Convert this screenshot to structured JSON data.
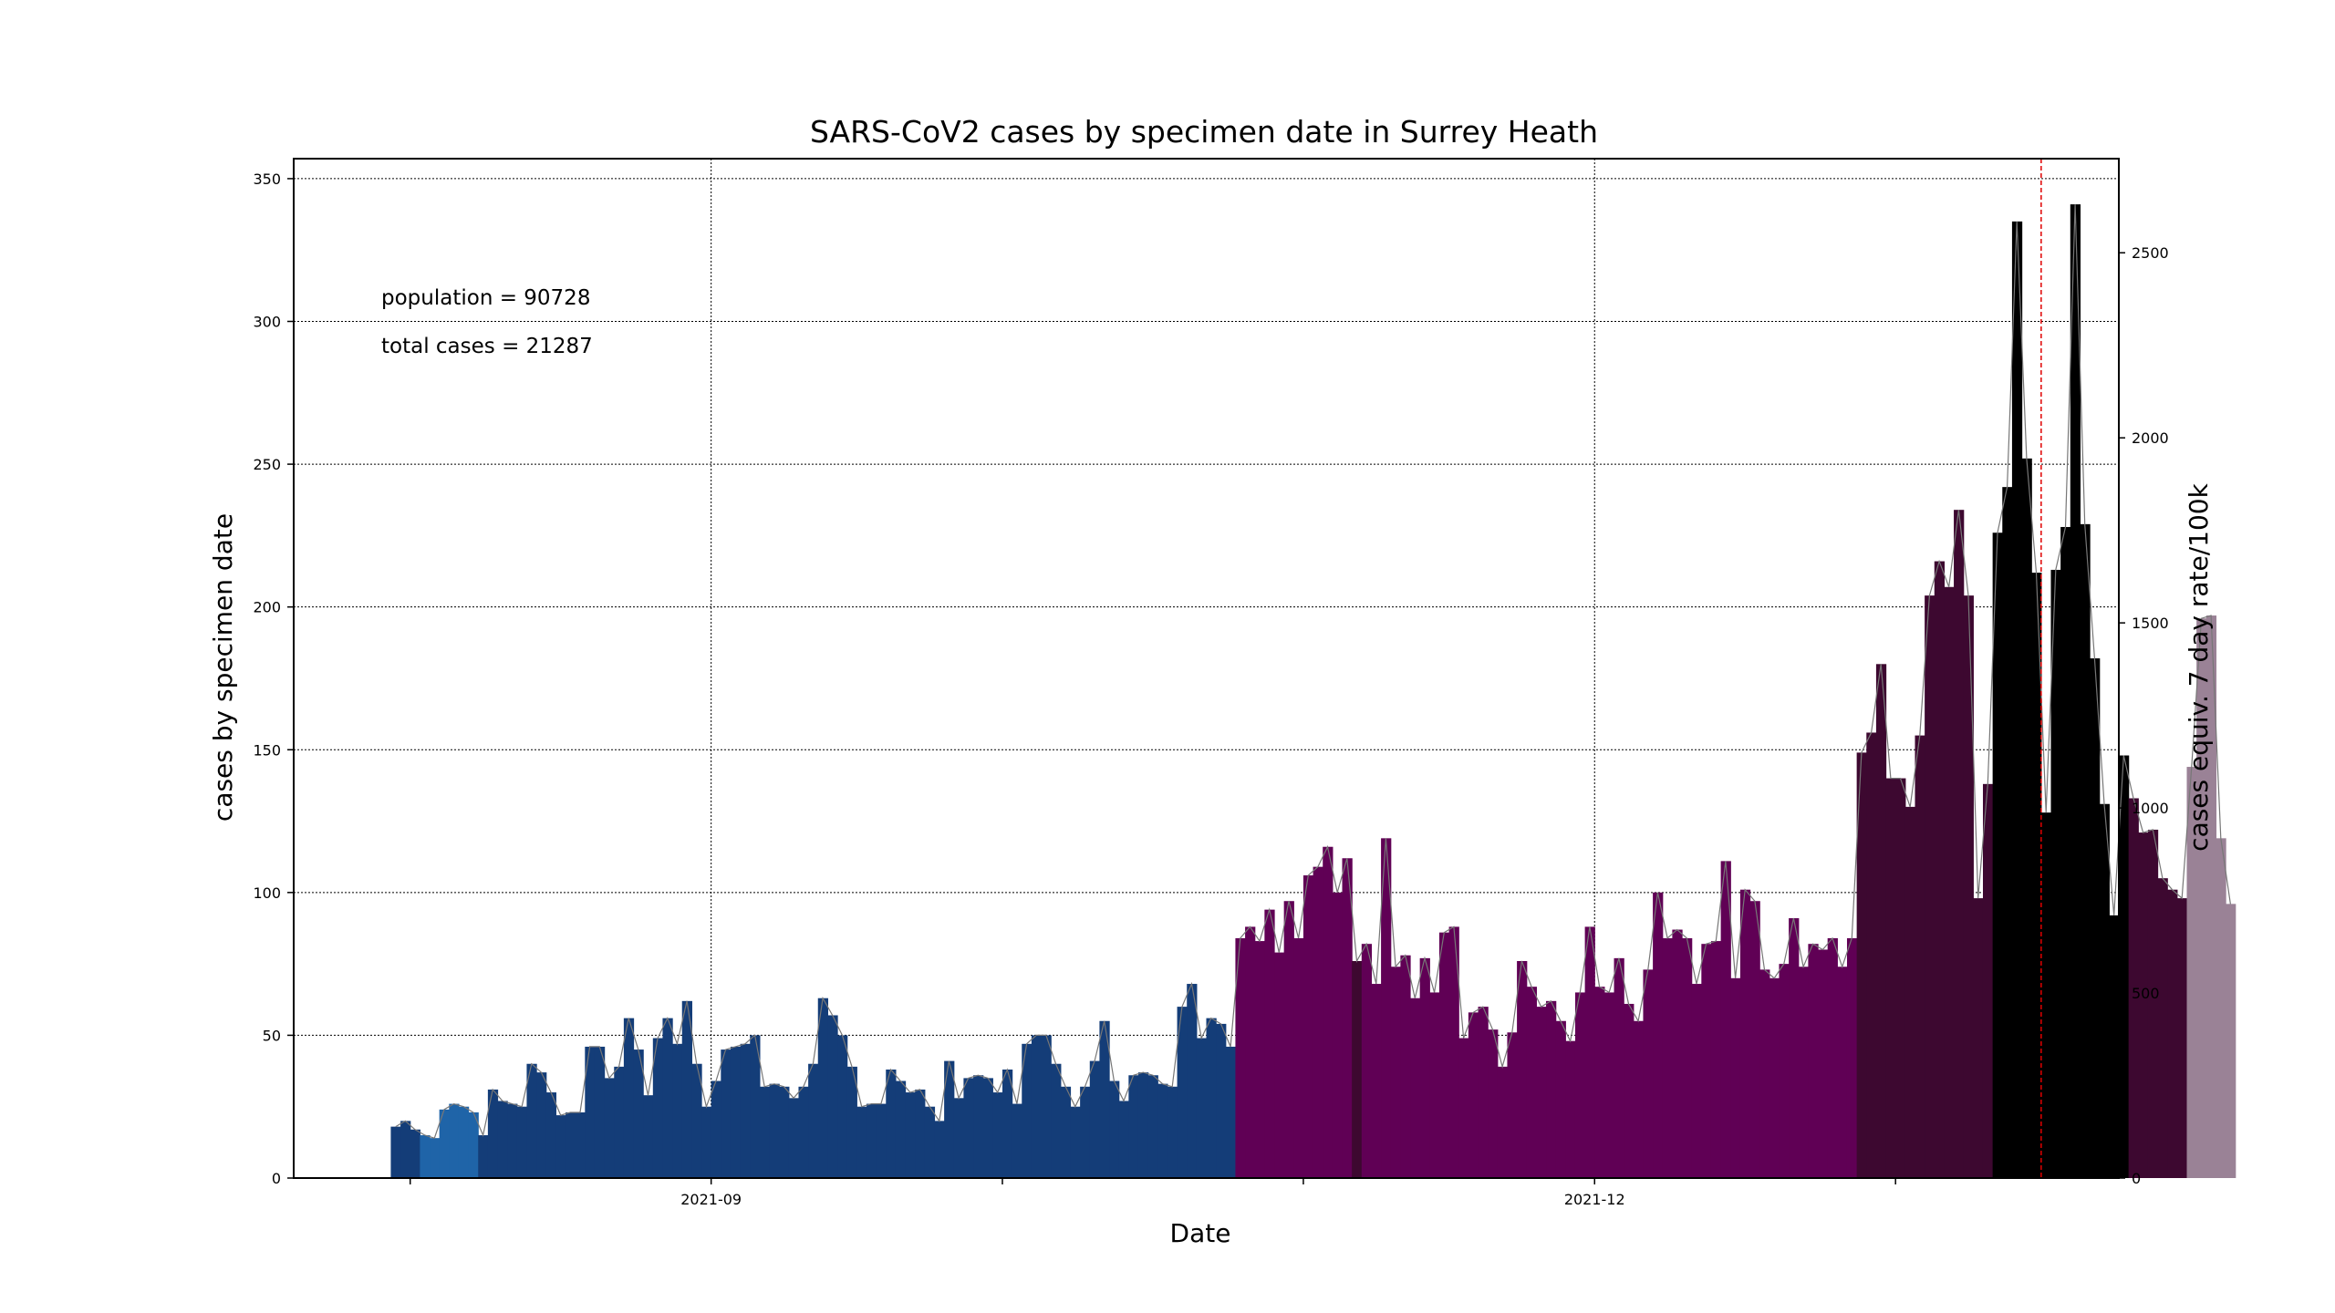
{
  "chart_data": {
    "type": "bar",
    "title": "SARS-CoV2 cases by specimen date in Surrey Heath",
    "xlabel": "Date",
    "ylabel": "cases by specimen date",
    "y2label": "cases equiv. 7 day rate/100k",
    "annotations": [
      "population = 90728",
      "total cases = 21287"
    ],
    "grid": true,
    "legend": "none",
    "xlim": [
      "2021-07-20",
      "2022-01-24"
    ],
    "ylim": [
      0,
      357
    ],
    "y2lim": [
      0,
      2754.3
    ],
    "x_ticks": [
      {
        "date": "2021-08-01",
        "label": ""
      },
      {
        "date": "2021-09-01",
        "label": "2021-09"
      },
      {
        "date": "2021-10-01",
        "label": ""
      },
      {
        "date": "2021-11-01",
        "label": ""
      },
      {
        "date": "2021-12-01",
        "label": "2021-12"
      },
      {
        "date": "2022-01-01",
        "label": ""
      }
    ],
    "y_ticks": [
      0,
      50,
      100,
      150,
      200,
      250,
      300,
      350
    ],
    "y2_ticks": [
      0,
      500,
      1000,
      1500,
      2000,
      2500
    ],
    "marker_line_date": "2022-01-16",
    "start_date": "2021-07-30",
    "values": [
      18,
      20,
      17,
      15,
      14,
      24,
      26,
      25,
      23,
      15,
      31,
      27,
      26,
      25,
      40,
      37,
      30,
      22,
      23,
      23,
      46,
      46,
      35,
      39,
      56,
      45,
      29,
      49,
      56,
      47,
      62,
      40,
      25,
      34,
      45,
      46,
      47,
      50,
      32,
      33,
      32,
      28,
      32,
      40,
      63,
      57,
      50,
      39,
      25,
      26,
      26,
      38,
      34,
      30,
      31,
      25,
      20,
      41,
      28,
      35,
      36,
      35,
      30,
      38,
      26,
      47,
      50,
      50,
      40,
      32,
      25,
      32,
      41,
      55,
      34,
      27,
      36,
      37,
      36,
      33,
      32,
      60,
      68,
      49,
      56,
      54,
      46,
      84,
      88,
      83,
      94,
      79,
      97,
      84,
      106,
      109,
      116,
      100,
      112,
      76,
      82,
      68,
      119,
      74,
      78,
      63,
      77,
      65,
      86,
      88,
      49,
      58,
      60,
      52,
      39,
      51,
      76,
      67,
      60,
      62,
      55,
      48,
      65,
      88,
      67,
      65,
      77,
      61,
      55,
      73,
      100,
      84,
      87,
      84,
      68,
      82,
      83,
      111,
      70,
      101,
      97,
      73,
      70,
      75,
      91,
      74,
      82,
      80,
      84,
      74,
      84,
      149,
      156,
      180,
      140,
      140,
      130,
      155,
      204,
      216,
      207,
      234,
      204,
      98,
      138,
      226,
      242,
      335,
      252,
      212,
      128,
      213,
      228,
      341,
      229,
      182,
      131,
      92,
      148,
      133,
      121,
      122,
      105,
      101,
      98,
      144,
      196,
      197,
      119,
      96
    ],
    "colors": {
      "dark_blue": "#143d78",
      "mid_blue": "#1f64a8",
      "purple": "#600055",
      "dark_purple": "#3d0830",
      "black": "#000000",
      "provisional": "#9a8296",
      "marker_line": "#e00000"
    }
  }
}
